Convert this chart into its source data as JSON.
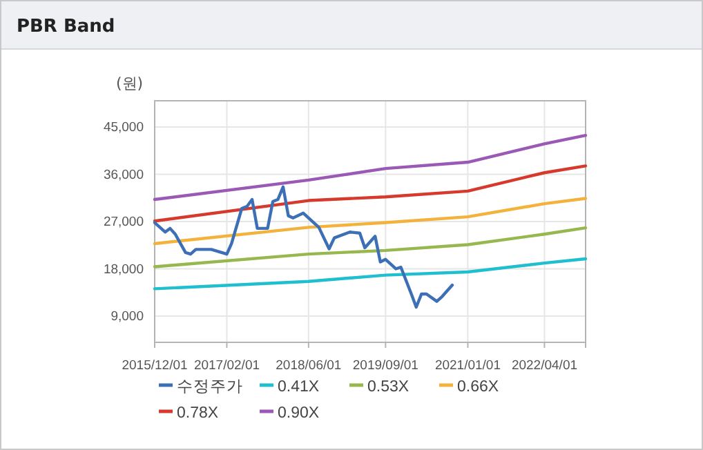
{
  "chart_data": {
    "type": "line",
    "title": "PBR Band",
    "ylabel": "(원)",
    "xlim": [
      "2015-12-01",
      "2022-12-01"
    ],
    "xticks": [
      {
        "value": "2015-12-01",
        "label": "2015/12/01"
      },
      {
        "value": "2017-02-01",
        "label": "2017/02/01"
      },
      {
        "value": "2018-06-01",
        "label": "2018/06/01"
      },
      {
        "value": "2019-09-01",
        "label": "2019/09/01"
      },
      {
        "value": "2021-01-01",
        "label": "2021/01/01"
      },
      {
        "value": "2022-04-01",
        "label": "2022/04/01"
      }
    ],
    "ylim": [
      4000,
      50000
    ],
    "yticks": [
      {
        "value": 9000,
        "label": "9,000"
      },
      {
        "value": 18000,
        "label": "18,000"
      },
      {
        "value": 27000,
        "label": "27,000"
      },
      {
        "value": 36000,
        "label": "36,000"
      },
      {
        "value": 45000,
        "label": "45,000"
      }
    ],
    "grid": true,
    "legend": "bottom",
    "marker": "none",
    "line_style": "solid",
    "series": [
      {
        "name": "수정주가",
        "color": "#3d6fb6",
        "x": [
          "2015-12",
          "2016-02",
          "2016-03",
          "2016-04",
          "2016-06",
          "2016-07",
          "2016-08",
          "2016-11",
          "2017-02",
          "2017-03",
          "2017-05",
          "2017-06",
          "2017-07",
          "2017-08",
          "2017-10",
          "2017-11",
          "2017-12",
          "2018-01",
          "2018-02",
          "2018-03",
          "2018-05",
          "2018-08",
          "2018-10",
          "2018-11",
          "2019-02",
          "2019-04",
          "2019-05",
          "2019-07",
          "2019-08",
          "2019-09",
          "2019-11",
          "2019-12",
          "2020-02",
          "2020-03",
          "2020-04",
          "2020-05",
          "2020-07",
          "2020-08",
          "2020-10"
        ],
        "values": [
          26800,
          25000,
          25700,
          24600,
          21100,
          20800,
          21700,
          21700,
          20800,
          22800,
          29500,
          29900,
          31200,
          25700,
          25700,
          30800,
          31200,
          33600,
          28100,
          27700,
          28600,
          25900,
          21800,
          23900,
          25000,
          24800,
          22000,
          24200,
          19300,
          19800,
          18000,
          18300,
          13200,
          10700,
          13200,
          13200,
          11800,
          12700,
          14900
        ]
      },
      {
        "name": "0.41X",
        "color": "#1fbfcf",
        "x": [
          "2015-12-01",
          "2018-06-01",
          "2019-09-01",
          "2021-01-01",
          "2022-04-01",
          "2022-12-01"
        ],
        "values": [
          14200,
          15600,
          16800,
          17400,
          19100,
          19900
        ]
      },
      {
        "name": "0.53X",
        "color": "#96b84e",
        "x": [
          "2015-12-01",
          "2018-06-01",
          "2019-09-01",
          "2021-01-01",
          "2022-04-01",
          "2022-12-01"
        ],
        "values": [
          18400,
          20800,
          21500,
          22600,
          24600,
          25800
        ]
      },
      {
        "name": "0.66X",
        "color": "#f3b23c",
        "x": [
          "2015-12-01",
          "2018-06-01",
          "2019-09-01",
          "2021-01-01",
          "2022-04-01",
          "2022-12-01"
        ],
        "values": [
          22800,
          25900,
          26800,
          27900,
          30400,
          31400
        ]
      },
      {
        "name": "0.78X",
        "color": "#d63a2c",
        "x": [
          "2015-12-01",
          "2018-06-01",
          "2019-09-01",
          "2021-01-01",
          "2022-04-01",
          "2022-12-01"
        ],
        "values": [
          27100,
          31000,
          31700,
          32800,
          36300,
          37600
        ]
      },
      {
        "name": "0.90X",
        "color": "#9b59b6",
        "x": [
          "2015-12-01",
          "2018-06-01",
          "2019-09-01",
          "2021-01-01",
          "2022-04-01",
          "2022-12-01"
        ],
        "values": [
          31200,
          34900,
          37100,
          38300,
          41800,
          43400
        ]
      }
    ]
  }
}
